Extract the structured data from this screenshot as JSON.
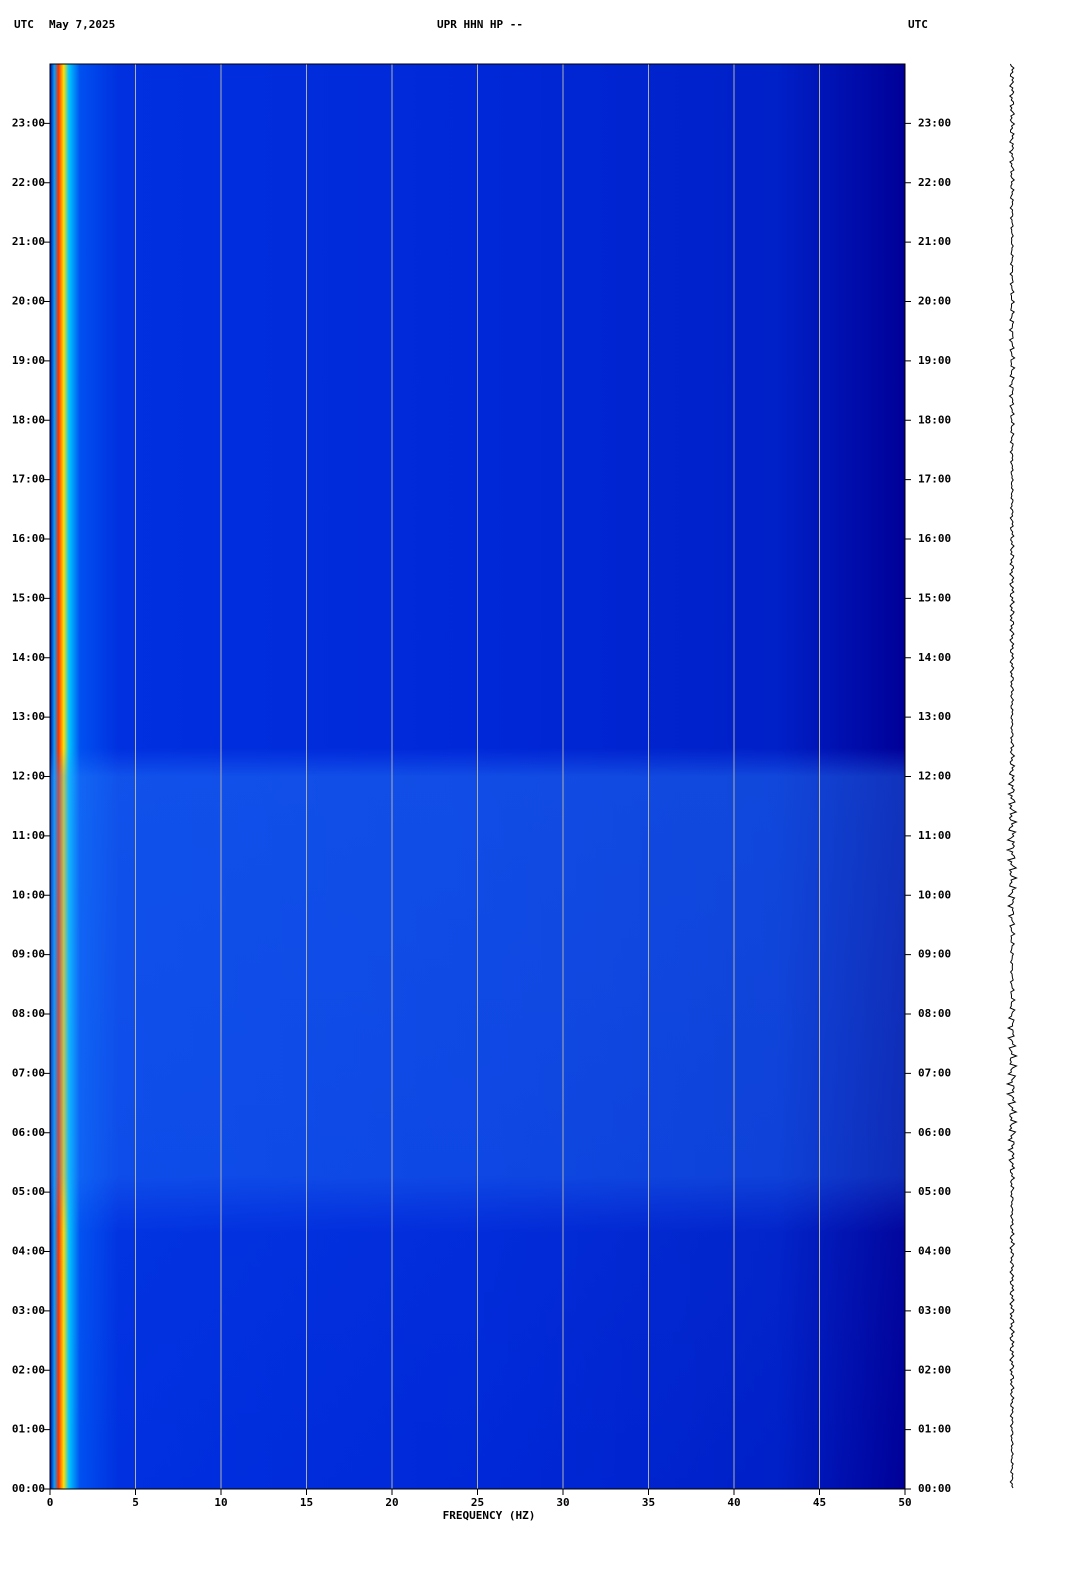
{
  "chart_data": {
    "type": "spectrogram",
    "title": "UPR HHN HP --",
    "date": "May 7,2025",
    "timezone": "UTC",
    "x_label": "FREQUENCY (HZ)",
    "xlim": [
      0,
      50
    ],
    "xticks": [
      0,
      5,
      10,
      15,
      20,
      25,
      30,
      35,
      40,
      45,
      50
    ],
    "ylim": [
      0,
      24
    ],
    "yticks": [
      {
        "value": 0,
        "label": "00:00"
      },
      {
        "value": 1,
        "label": "01:00"
      },
      {
        "value": 2,
        "label": "02:00"
      },
      {
        "value": 3,
        "label": "03:00"
      },
      {
        "value": 4,
        "label": "04:00"
      },
      {
        "value": 5,
        "label": "05:00"
      },
      {
        "value": 6,
        "label": "06:00"
      },
      {
        "value": 7,
        "label": "07:00"
      },
      {
        "value": 8,
        "label": "08:00"
      },
      {
        "value": 9,
        "label": "09:00"
      },
      {
        "value": 10,
        "label": "10:00"
      },
      {
        "value": 11,
        "label": "11:00"
      },
      {
        "value": 12,
        "label": "12:00"
      },
      {
        "value": 13,
        "label": "13:00"
      },
      {
        "value": 14,
        "label": "14:00"
      },
      {
        "value": 15,
        "label": "15:00"
      },
      {
        "value": 16,
        "label": "16:00"
      },
      {
        "value": 17,
        "label": "17:00"
      },
      {
        "value": 18,
        "label": "18:00"
      },
      {
        "value": 19,
        "label": "19:00"
      },
      {
        "value": 20,
        "label": "20:00"
      },
      {
        "value": 21,
        "label": "21:00"
      },
      {
        "value": 22,
        "label": "22:00"
      },
      {
        "value": 23,
        "label": "23:00"
      }
    ],
    "grid": true
  }
}
